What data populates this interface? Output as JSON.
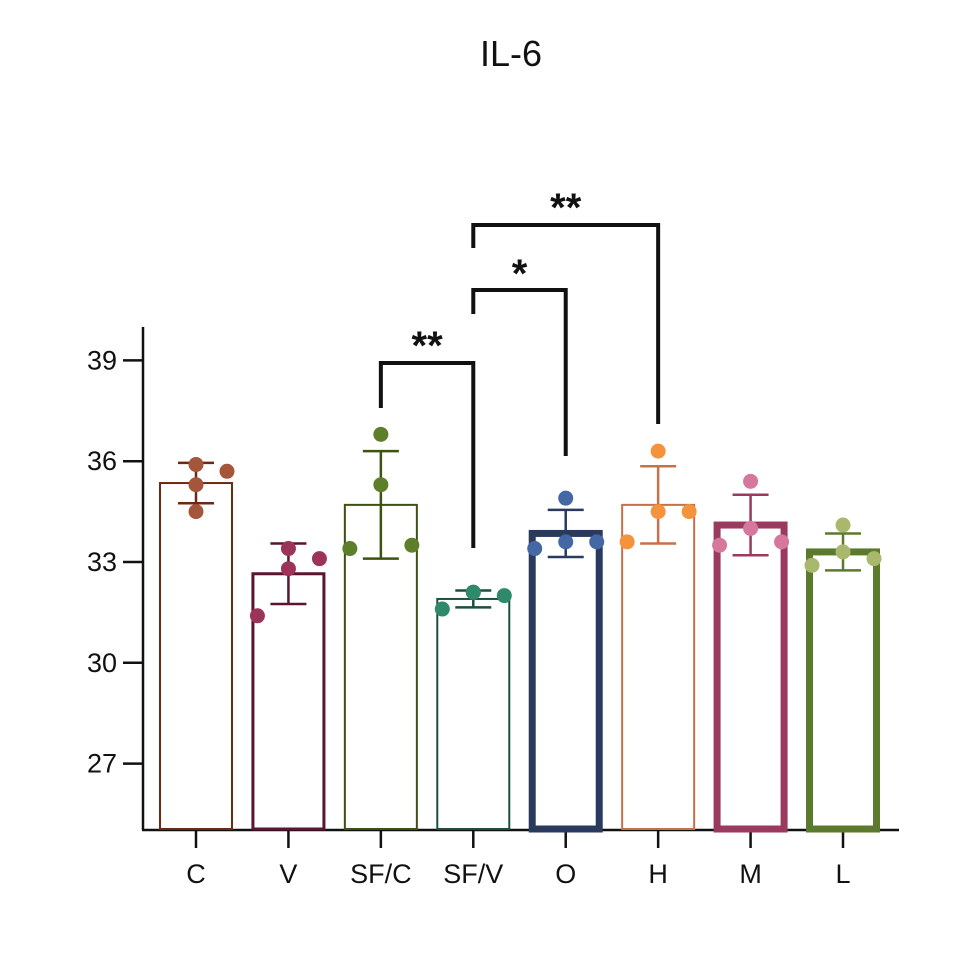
{
  "chart_data": {
    "type": "bar",
    "title": "IL-6",
    "xlabel": "",
    "ylabel": "",
    "ylim": [
      25,
      40
    ],
    "yticks": [
      27,
      30,
      33,
      36,
      39
    ],
    "grid": false,
    "categories": [
      "C",
      "V",
      "SF/C",
      "SF/V",
      "O",
      "H",
      "M",
      "L"
    ],
    "values": [
      35.35,
      32.65,
      34.7,
      31.9,
      33.85,
      34.7,
      34.1,
      33.3
    ],
    "errors": [
      0.6,
      0.9,
      1.6,
      0.25,
      0.7,
      1.15,
      0.9,
      0.55
    ],
    "points": [
      [
        35.9,
        35.3,
        34.5,
        35.7
      ],
      [
        33.4,
        32.8,
        31.4,
        33.1
      ],
      [
        36.8,
        35.3,
        33.4,
        33.5
      ],
      [
        32.1,
        32.1,
        31.6,
        32.0
      ],
      [
        34.9,
        33.6,
        33.4,
        33.6
      ],
      [
        36.3,
        34.5,
        33.6,
        34.5
      ],
      [
        35.4,
        34.0,
        33.5,
        33.6
      ],
      [
        34.1,
        33.3,
        32.9,
        33.1
      ]
    ],
    "bar_colors": [
      "#6b2a12",
      "#5c1433",
      "#3d5210",
      "#1d4f3e",
      "#2a3a5e",
      "#c87048",
      "#9a3a5e",
      "#5c7a2e"
    ],
    "point_colors": [
      "#a5553a",
      "#9c3358",
      "#5e7f2a",
      "#2e8a6b",
      "#4468a6",
      "#f5923e",
      "#d6789e",
      "#aab86e"
    ],
    "bar_styles": [
      "thin",
      "medium",
      "thin",
      "thin",
      "thick",
      "thin",
      "thick",
      "thick"
    ],
    "significance": [
      {
        "from": "SF/C",
        "to": "SF/V",
        "label": "**"
      },
      {
        "from": "SF/V",
        "to": "O",
        "label": "*"
      },
      {
        "from": "SF/V",
        "to": "H",
        "label": "**"
      }
    ]
  }
}
